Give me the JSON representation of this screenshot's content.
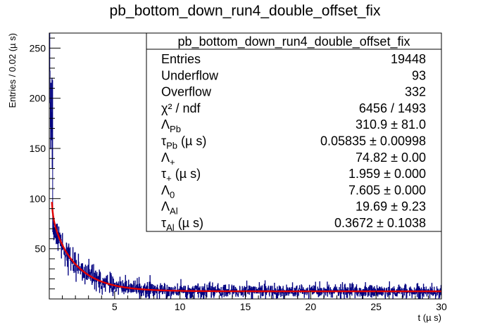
{
  "chart_data": {
    "type": "histogram",
    "title": "pb_bottom_down_run4_double_offset_fix",
    "xlabel": "t (µ s)",
    "ylabel": "Entries / 0.02 (µ s)",
    "xlim": [
      0,
      30
    ],
    "ylim": [
      0,
      265
    ],
    "x_ticks": [
      5,
      10,
      15,
      20,
      25,
      30
    ],
    "y_ticks": [
      50,
      100,
      150,
      200,
      250
    ],
    "bin_width": 0.02,
    "histogram": {
      "name": "pb_bottom_down_run4_double_offset_fix",
      "color": "#000080",
      "approx_profile": [
        {
          "x": 0.1,
          "y": 240
        },
        {
          "x": 0.3,
          "y": 130
        },
        {
          "x": 0.5,
          "y": 90
        },
        {
          "x": 1.0,
          "y": 65
        },
        {
          "x": 2.0,
          "y": 40
        },
        {
          "x": 3.0,
          "y": 27
        },
        {
          "x": 4.0,
          "y": 18
        },
        {
          "x": 5.0,
          "y": 14
        },
        {
          "x": 7.0,
          "y": 10
        },
        {
          "x": 10.0,
          "y": 9
        },
        {
          "x": 20.0,
          "y": 8
        },
        {
          "x": 30.0,
          "y": 8
        }
      ]
    },
    "fit": {
      "color": "#e00000",
      "model": "A_Pb*exp(-t/tau_Pb) + A_+*exp(-t/tau_+) + A_0 + A_Al*exp(-t/tau_Al)",
      "params": {
        "A_Pb": 310.9,
        "tau_Pb": 0.05835,
        "A_plus": 74.82,
        "tau_plus": 1.959,
        "A_0": 7.605,
        "A_Al": 19.69,
        "tau_Al": 0.3672
      }
    },
    "grid": false,
    "legend": "stats box top-right"
  },
  "stats": {
    "title": "pb_bottom_down_run4_double_offset_fix",
    "rows": [
      {
        "label": "Entries",
        "value": "19448"
      },
      {
        "label": "Underflow",
        "value": "93"
      },
      {
        "label": "Overflow",
        "value": "332"
      },
      {
        "label": "χ² / ndf",
        "value": "6456 / 1493"
      },
      {
        "label": "ΛPb",
        "value": "310.9 ± 81.0"
      },
      {
        "label": "τPb (µ s)",
        "value": "0.05835 ± 0.00998"
      },
      {
        "label": "Λ+",
        "value": "74.82 ± 0.00"
      },
      {
        "label": "τ+ (µ s)",
        "value": "1.959 ± 0.000"
      },
      {
        "label": "Λ0",
        "value": "7.605 ± 0.000"
      },
      {
        "label": "ΛAl",
        "value": "19.69 ± 9.23"
      },
      {
        "label": "τAl (µ s)",
        "value": "0.3672 ± 0.1038"
      }
    ]
  }
}
